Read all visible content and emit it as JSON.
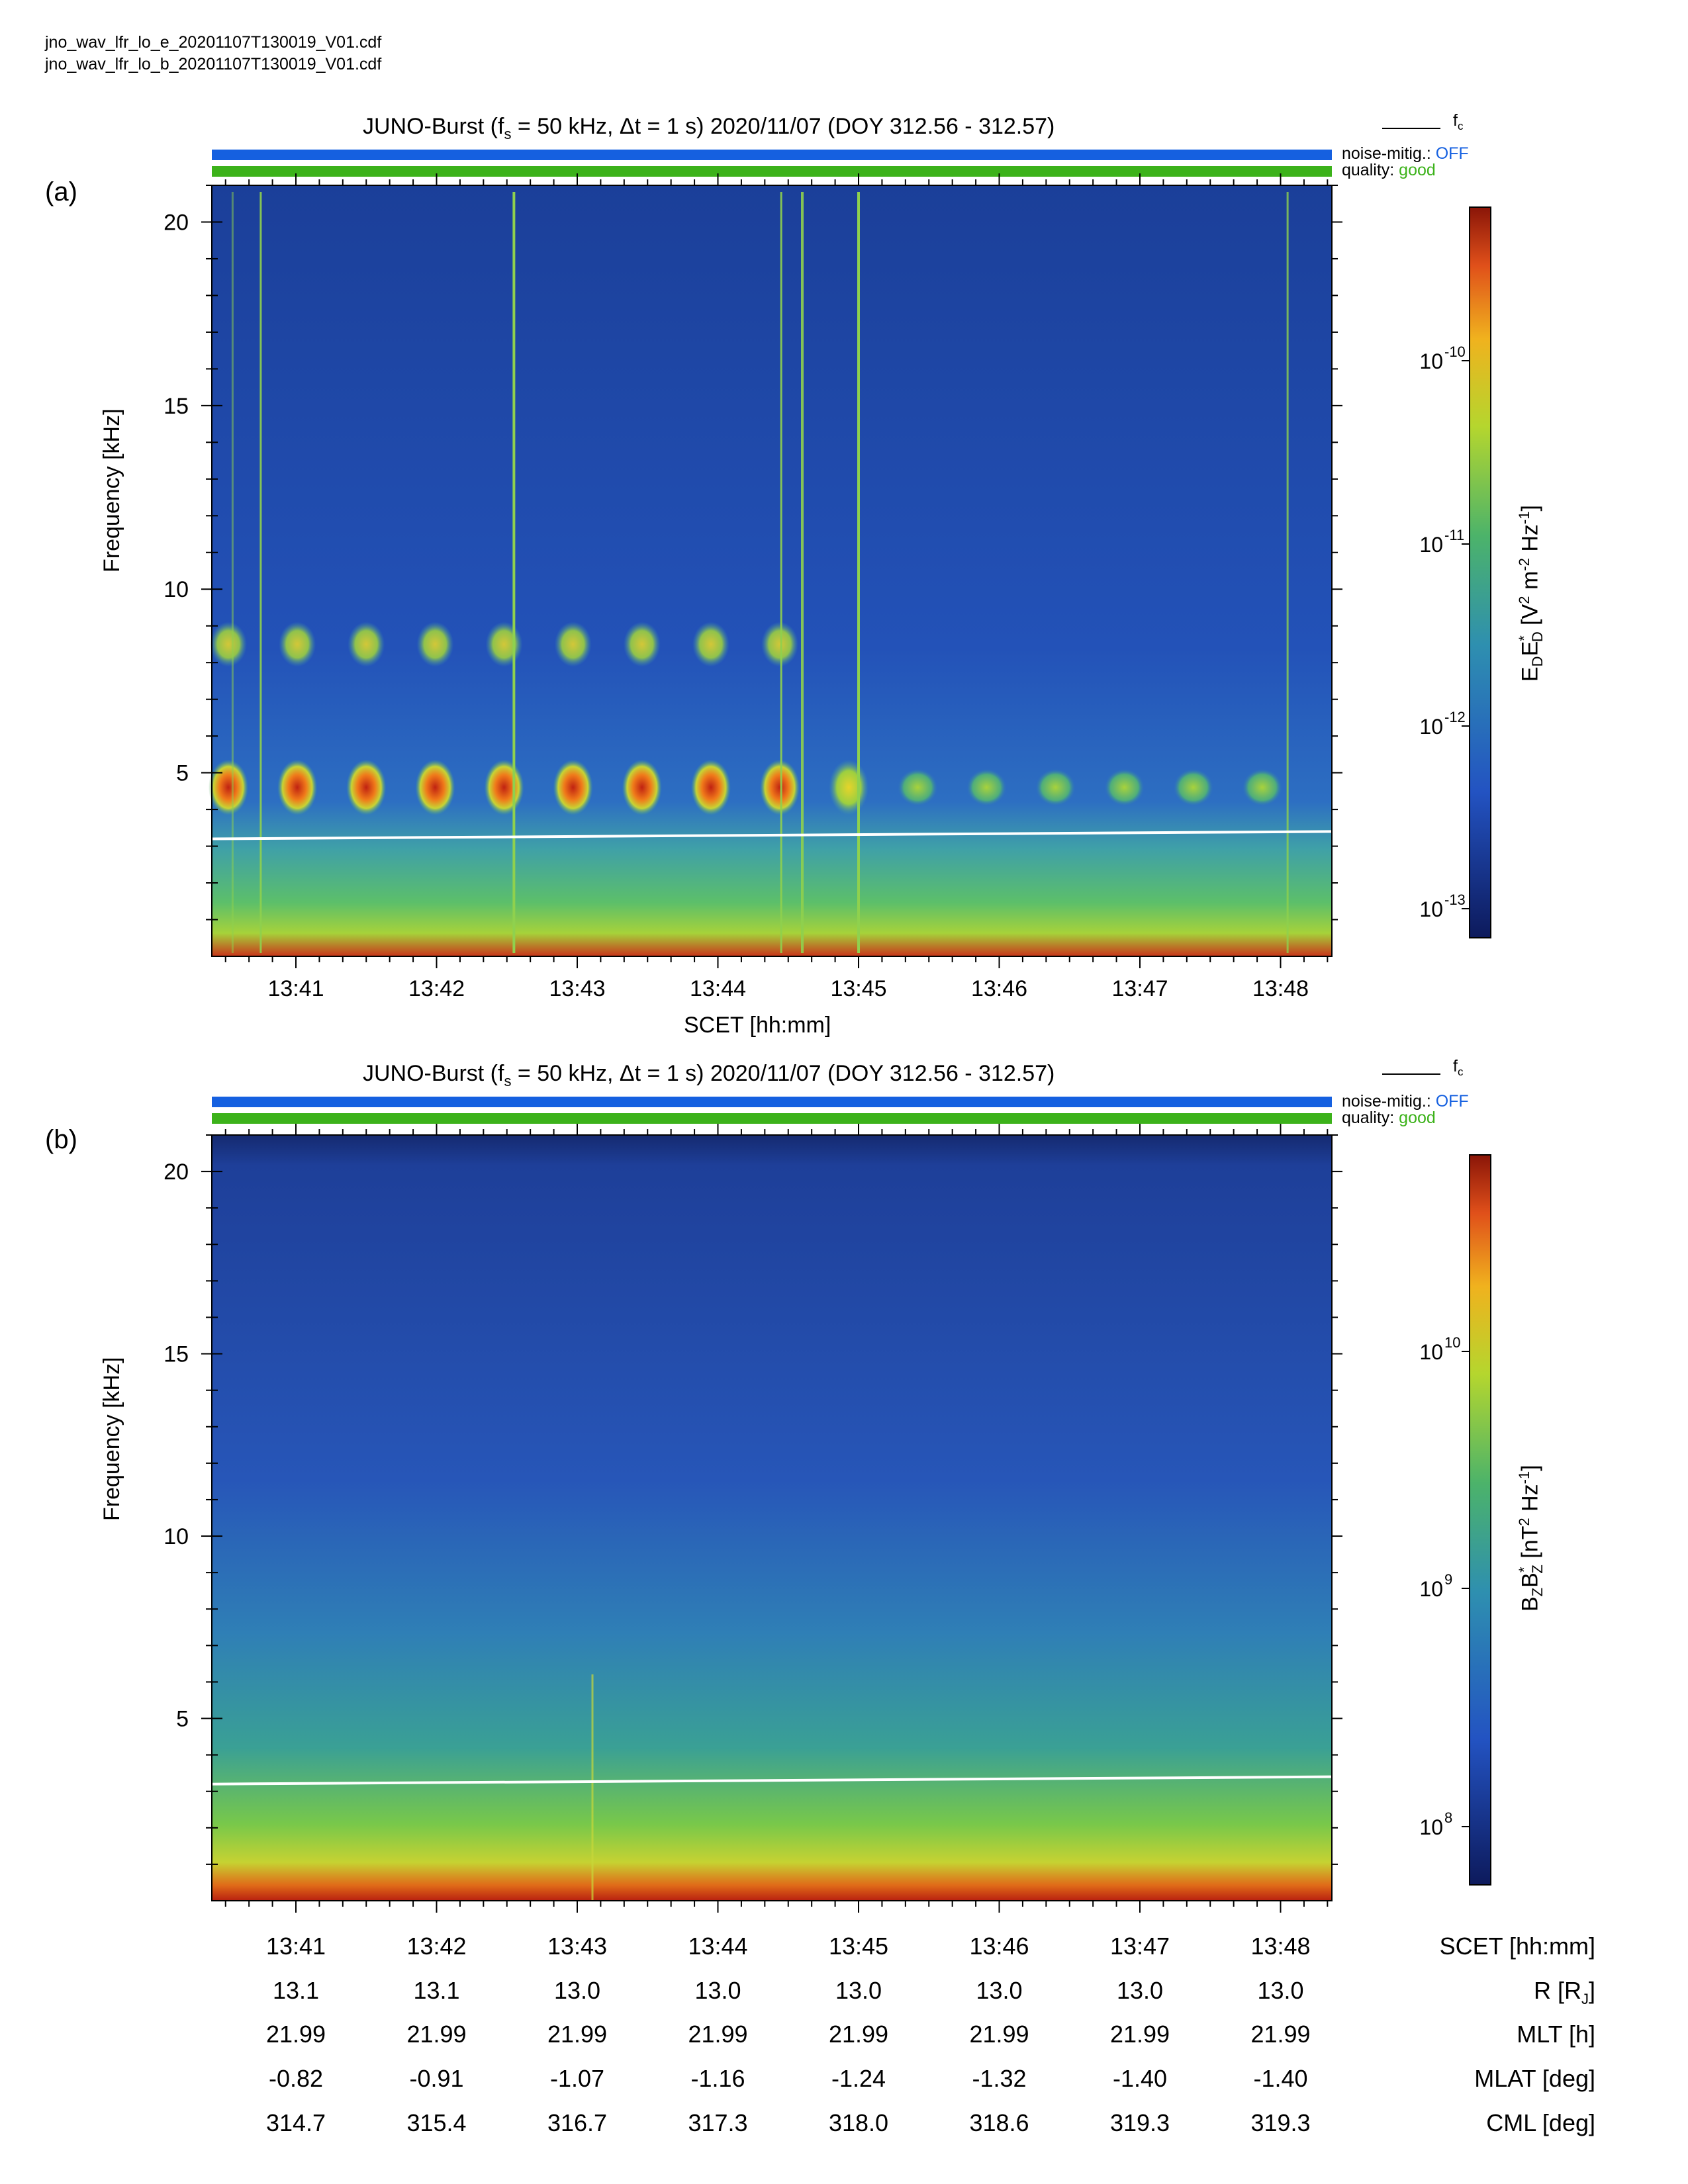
{
  "files": [
    "jno_wav_lfr_lo_e_20201107T130019_V01.cdf",
    "jno_wav_lfr_lo_b_20201107T130019_V01.cdf"
  ],
  "legend": {
    "fc": "f",
    "fc_sub": "c"
  },
  "status": {
    "noise_label": "noise-mitig.:",
    "noise_value": "OFF",
    "quality_label": "quality:",
    "quality_value": "good",
    "noise_color": "#1560e0",
    "quality_color": "#3cb21a"
  },
  "chart_data": [
    {
      "panel": "(a)",
      "type": "heatmap",
      "title": "JUNO-Burst (fs = 50 kHz, Δt = 1 s)  2020/11/07 (DOY 312.56 - 312.57)",
      "title_parts": {
        "a": "JUNO-Burst (f",
        "sub": "s",
        "b": " = 50 kHz, Δt = 1 s)  2020/11/07 (DOY 312.56 - 312.57)"
      },
      "xlabel": "SCET [hh:mm]",
      "ylabel": "Frequency [kHz]",
      "xticks": [
        "13:41",
        "13:42",
        "13:43",
        "13:44",
        "13:45",
        "13:46",
        "13:47",
        "13:48"
      ],
      "yticks": [
        5,
        10,
        15,
        20
      ],
      "ylim": [
        0,
        21
      ],
      "colorbar": {
        "label": "E_D E_D* [V^2 m^-2 Hz^-1]",
        "label_parts": [
          "E",
          "D",
          "E",
          "*",
          "D",
          " [V",
          "2",
          " m",
          "-2",
          " Hz",
          "-1",
          "]"
        ],
        "ticks": [
          "10",
          "10",
          "10",
          "10"
        ],
        "exponents": [
          "-10",
          "-11",
          "-12",
          "-13"
        ],
        "scale": "log"
      },
      "fc_line": {
        "description": "electron cyclotron frequency",
        "start_kHz": 3.2,
        "end_kHz": 3.4
      },
      "features": [
        {
          "band": "emission band 1",
          "center_kHz": 4.6,
          "from": "13:40",
          "to": "13:48",
          "intensity": "high, fading after 13:45"
        },
        {
          "band": "emission band 2",
          "center_kHz": 8.5,
          "from": "13:40",
          "to": "13:44",
          "intensity": "moderate"
        }
      ]
    },
    {
      "panel": "(b)",
      "type": "heatmap",
      "title": "JUNO-Burst (fs = 50 kHz, Δt = 1 s)  2020/11/07 (DOY 312.56 - 312.57)",
      "title_parts": {
        "a": "JUNO-Burst (f",
        "sub": "s",
        "b": " = 50 kHz, Δt = 1 s)  2020/11/07 (DOY 312.56 - 312.57)"
      },
      "ylabel": "Frequency [kHz]",
      "yticks": [
        5,
        10,
        15,
        20
      ],
      "ylim": [
        0,
        21
      ],
      "colorbar": {
        "label": "B_Z B_Z* [nT^2 Hz^-1]",
        "label_parts": [
          "B",
          "Z",
          "B",
          "*",
          "Z",
          " [nT",
          "2",
          " Hz",
          "-1",
          "]"
        ],
        "ticks": [
          "10",
          "10",
          "10"
        ],
        "exponents": [
          "10",
          "9",
          "8"
        ],
        "scale": "log"
      },
      "fc_line": {
        "start_kHz": 3.2,
        "end_kHz": 3.4
      }
    }
  ],
  "ephemeris": {
    "columns": [
      "13:41",
      "13:42",
      "13:43",
      "13:44",
      "13:45",
      "13:46",
      "13:47",
      "13:48"
    ],
    "rows": [
      {
        "label": "SCET [hh:mm]",
        "values": [
          "13:41",
          "13:42",
          "13:43",
          "13:44",
          "13:45",
          "13:46",
          "13:47",
          "13:48"
        ]
      },
      {
        "label": "R [R",
        "label_sub": "J",
        "label_end": "]",
        "values": [
          "13.1",
          "13.1",
          "13.0",
          "13.0",
          "13.0",
          "13.0",
          "13.0",
          "13.0"
        ]
      },
      {
        "label": "MLT [h]",
        "values": [
          "21.99",
          "21.99",
          "21.99",
          "21.99",
          "21.99",
          "21.99",
          "21.99",
          "21.99"
        ]
      },
      {
        "label": "MLAT [deg]",
        "values": [
          "-0.82",
          "-0.91",
          "-1.07",
          "-1.16",
          "-1.24",
          "-1.32",
          "-1.40",
          "-1.40"
        ]
      },
      {
        "label": "CML [deg]",
        "values": [
          "314.7",
          "315.4",
          "316.7",
          "317.3",
          "318.0",
          "318.6",
          "319.3",
          "319.3"
        ]
      }
    ]
  }
}
